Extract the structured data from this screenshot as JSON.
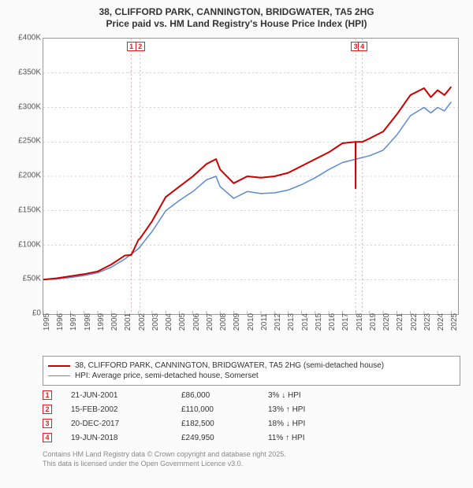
{
  "title": {
    "line1": "38, CLIFFORD PARK, CANNINGTON, BRIDGWATER, TA5 2HG",
    "line2": "Price paid vs. HM Land Registry's House Price Index (HPI)"
  },
  "chart": {
    "type": "line",
    "background_color": "#ffffff",
    "outer_background": "#fbfbfb",
    "border_color": "#999999",
    "grid_color": "#aaaaaa",
    "vmarker_color": "#ee99aa",
    "title_fontsize": 12,
    "tick_fontsize": 10,
    "x": {
      "min": 1995,
      "max": 2025.5,
      "ticks": [
        1995,
        1996,
        1997,
        1998,
        1999,
        2000,
        2001,
        2002,
        2003,
        2004,
        2005,
        2006,
        2007,
        2008,
        2009,
        2010,
        2011,
        2012,
        2013,
        2014,
        2015,
        2016,
        2017,
        2018,
        2019,
        2020,
        2021,
        2022,
        2023,
        2024,
        2025
      ]
    },
    "y": {
      "min": 0,
      "max": 400000,
      "ticks": [
        0,
        50000,
        100000,
        150000,
        200000,
        250000,
        300000,
        350000,
        400000
      ],
      "tick_labels": [
        "£0",
        "£50K",
        "£100K",
        "£150K",
        "£200K",
        "£250K",
        "£300K",
        "£350K",
        "£400K"
      ]
    },
    "markers": [
      {
        "n": "1",
        "x": 2001.47
      },
      {
        "n": "2",
        "x": 2002.12
      },
      {
        "n": "3",
        "x": 2017.97
      },
      {
        "n": "4",
        "x": 2018.46
      }
    ],
    "series": [
      {
        "id": "price_paid",
        "label": "38, CLIFFORD PARK, CANNINGTON, BRIDGWATER, TA5 2HG (semi-detached house)",
        "color": "#cc0000",
        "width": 2,
        "data": [
          [
            1995,
            50000
          ],
          [
            1996,
            52000
          ],
          [
            1997,
            55000
          ],
          [
            1998,
            58000
          ],
          [
            1999,
            62000
          ],
          [
            2000,
            72000
          ],
          [
            2001,
            85000
          ],
          [
            2001.47,
            86000
          ],
          [
            2002,
            108000
          ],
          [
            2002.12,
            110000
          ],
          [
            2003,
            135000
          ],
          [
            2004,
            170000
          ],
          [
            2005,
            185000
          ],
          [
            2006,
            200000
          ],
          [
            2007,
            218000
          ],
          [
            2007.7,
            225000
          ],
          [
            2008,
            210000
          ],
          [
            2009,
            190000
          ],
          [
            2010,
            200000
          ],
          [
            2011,
            198000
          ],
          [
            2012,
            200000
          ],
          [
            2013,
            205000
          ],
          [
            2014,
            215000
          ],
          [
            2015,
            225000
          ],
          [
            2016,
            235000
          ],
          [
            2017,
            248000
          ],
          [
            2017.96,
            250000
          ],
          [
            2017.97,
            182500
          ],
          [
            2017.975,
            250000
          ],
          [
            2018,
            250000
          ],
          [
            2018.46,
            249950
          ],
          [
            2019,
            255000
          ],
          [
            2020,
            265000
          ],
          [
            2021,
            290000
          ],
          [
            2022,
            318000
          ],
          [
            2023,
            328000
          ],
          [
            2023.5,
            315000
          ],
          [
            2024,
            325000
          ],
          [
            2024.5,
            318000
          ],
          [
            2025,
            330000
          ]
        ]
      },
      {
        "id": "hpi",
        "label": "HPI: Average price, semi-detached house, Somerset",
        "color": "#5b8bd0",
        "width": 1.5,
        "data": [
          [
            1995,
            50000
          ],
          [
            1996,
            51000
          ],
          [
            1997,
            53000
          ],
          [
            1998,
            56000
          ],
          [
            1999,
            60000
          ],
          [
            2000,
            68000
          ],
          [
            2001,
            80000
          ],
          [
            2002,
            95000
          ],
          [
            2003,
            120000
          ],
          [
            2004,
            150000
          ],
          [
            2005,
            165000
          ],
          [
            2006,
            178000
          ],
          [
            2007,
            195000
          ],
          [
            2007.7,
            200000
          ],
          [
            2008,
            185000
          ],
          [
            2009,
            168000
          ],
          [
            2010,
            178000
          ],
          [
            2011,
            175000
          ],
          [
            2012,
            176000
          ],
          [
            2013,
            180000
          ],
          [
            2014,
            188000
          ],
          [
            2015,
            198000
          ],
          [
            2016,
            210000
          ],
          [
            2017,
            220000
          ],
          [
            2018,
            225000
          ],
          [
            2019,
            230000
          ],
          [
            2020,
            238000
          ],
          [
            2021,
            260000
          ],
          [
            2022,
            288000
          ],
          [
            2023,
            300000
          ],
          [
            2023.5,
            292000
          ],
          [
            2024,
            300000
          ],
          [
            2024.5,
            295000
          ],
          [
            2025,
            308000
          ]
        ]
      }
    ]
  },
  "legend": {
    "items": [
      {
        "color": "#cc0000",
        "width": 2,
        "label": "38, CLIFFORD PARK, CANNINGTON, BRIDGWATER, TA5 2HG (semi-detached house)"
      },
      {
        "color": "#5b8bd0",
        "width": 1.5,
        "label": "HPI: Average price, semi-detached house, Somerset"
      }
    ]
  },
  "events": [
    {
      "n": "1",
      "date": "21-JUN-2001",
      "price": "£86,000",
      "delta": "3% ↓ HPI"
    },
    {
      "n": "2",
      "date": "15-FEB-2002",
      "price": "£110,000",
      "delta": "13% ↑ HPI"
    },
    {
      "n": "3",
      "date": "20-DEC-2017",
      "price": "£182,500",
      "delta": "18% ↓ HPI"
    },
    {
      "n": "4",
      "date": "19-JUN-2018",
      "price": "£249,950",
      "delta": "11% ↑ HPI"
    }
  ],
  "footer": {
    "line1": "Contains HM Land Registry data © Crown copyright and database right 2025.",
    "line2": "This data is licensed under the Open Government Licence v3.0."
  }
}
